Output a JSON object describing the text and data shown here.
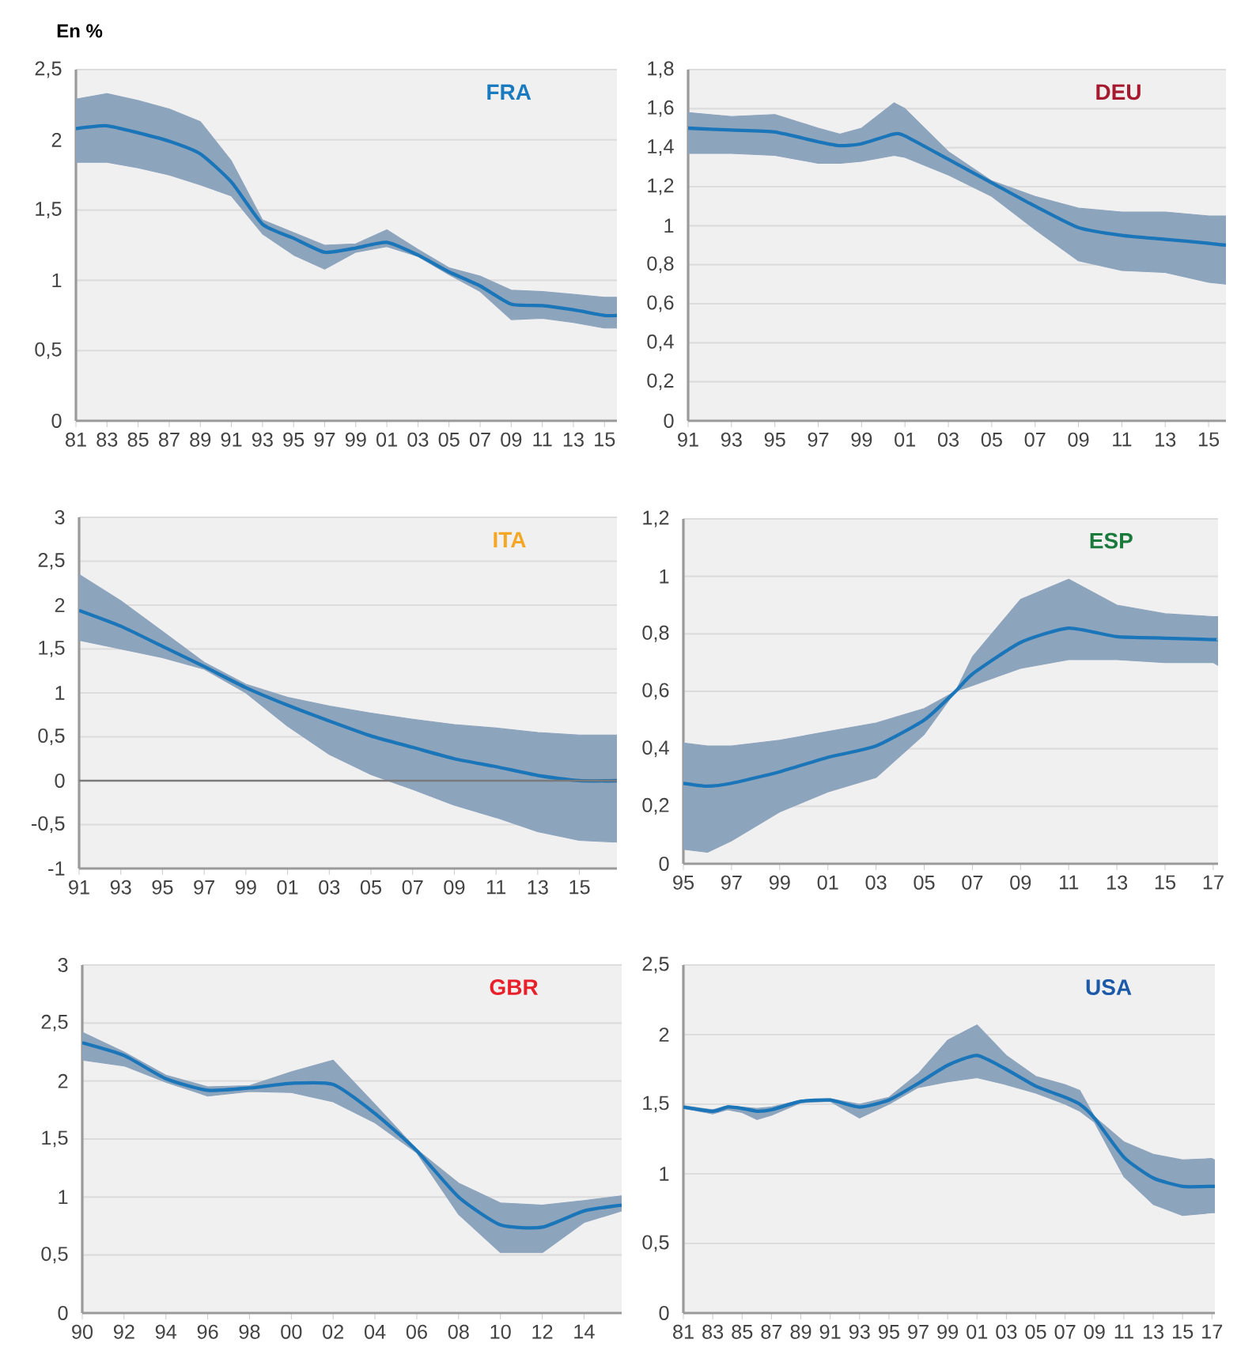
{
  "chart_data": [
    {
      "type": "line",
      "title": "FRA",
      "ylabel": "En %",
      "grid": "y",
      "xlim": [
        1981,
        2015.8
      ],
      "ylim": [
        0,
        2.5
      ],
      "xticks": [
        {
          "value": 1981,
          "label": "81"
        },
        {
          "value": 1983,
          "label": "83"
        },
        {
          "value": 1985,
          "label": "85"
        },
        {
          "value": 1987,
          "label": "87"
        },
        {
          "value": 1989,
          "label": "89"
        },
        {
          "value": 1991,
          "label": "91"
        },
        {
          "value": 1993,
          "label": "93"
        },
        {
          "value": 1995,
          "label": "95"
        },
        {
          "value": 1997,
          "label": "97"
        },
        {
          "value": 1999,
          "label": "99"
        },
        {
          "value": 2001,
          "label": "01"
        },
        {
          "value": 2003,
          "label": "03"
        },
        {
          "value": 2005,
          "label": "05"
        },
        {
          "value": 2007,
          "label": "07"
        },
        {
          "value": 2009,
          "label": "09"
        },
        {
          "value": 2011,
          "label": "11"
        },
        {
          "value": 2013,
          "label": "13"
        },
        {
          "value": 2015,
          "label": "15"
        }
      ],
      "yticks": [
        0,
        {
          "value": 0.5,
          "label": "0,5"
        },
        1,
        {
          "value": 1.5,
          "label": "1,5"
        },
        2,
        {
          "value": 2.5,
          "label": "2,5"
        }
      ],
      "x": [
        1981,
        1983,
        1985,
        1987,
        1989,
        1991,
        1993,
        1995,
        1997,
        1999,
        2001,
        2003,
        2005,
        2007,
        2009,
        2011,
        2013,
        2015,
        2015.8
      ],
      "series": [
        {
          "color": "#1a75b9",
          "values": [
            2.08,
            2.1,
            2.05,
            1.99,
            1.9,
            1.7,
            1.4,
            1.3,
            1.2,
            1.23,
            1.27,
            1.18,
            1.06,
            0.96,
            0.83,
            0.82,
            0.79,
            0.75,
            0.75
          ],
          "upper": [
            2.29,
            2.33,
            2.28,
            2.22,
            2.13,
            1.85,
            1.43,
            1.34,
            1.25,
            1.26,
            1.36,
            1.22,
            1.09,
            1.03,
            0.93,
            0.92,
            0.9,
            0.88,
            0.88
          ],
          "lower": [
            1.84,
            1.84,
            1.8,
            1.75,
            1.68,
            1.6,
            1.33,
            1.18,
            1.08,
            1.2,
            1.24,
            1.17,
            1.04,
            0.92,
            0.72,
            0.73,
            0.7,
            0.66,
            0.66
          ]
        }
      ]
    },
    {
      "type": "line",
      "title": "DEU",
      "grid": "y",
      "xlim": [
        1991,
        2015.8
      ],
      "ylim": [
        0,
        1.8
      ],
      "xticks": [
        {
          "value": 1991,
          "label": "91"
        },
        {
          "value": 1993,
          "label": "93"
        },
        {
          "value": 1995,
          "label": "95"
        },
        {
          "value": 1997,
          "label": "97"
        },
        {
          "value": 1999,
          "label": "99"
        },
        {
          "value": 2001,
          "label": "01"
        },
        {
          "value": 2003,
          "label": "03"
        },
        {
          "value": 2005,
          "label": "05"
        },
        {
          "value": 2007,
          "label": "07"
        },
        {
          "value": 2009,
          "label": "09"
        },
        {
          "value": 2011,
          "label": "11"
        },
        {
          "value": 2013,
          "label": "13"
        },
        {
          "value": 2015,
          "label": "15"
        }
      ],
      "yticks": [
        0,
        {
          "value": 0.2,
          "label": "0,2"
        },
        {
          "value": 0.4,
          "label": "0,4"
        },
        {
          "value": 0.6,
          "label": "0,6"
        },
        {
          "value": 0.8,
          "label": "0,8"
        },
        1,
        {
          "value": 1.2,
          "label": "1,2"
        },
        {
          "value": 1.4,
          "label": "1,4"
        },
        {
          "value": 1.6,
          "label": "1,6"
        },
        {
          "value": 1.8,
          "label": "1,8"
        }
      ],
      "x": [
        1991,
        1993,
        1995,
        1997,
        1998,
        1999,
        2000.5,
        2001,
        2003,
        2005,
        2007,
        2009,
        2011,
        2013,
        2015,
        2015.8
      ],
      "series": [
        {
          "color": "#1a75b9",
          "values": [
            1.5,
            1.49,
            1.48,
            1.43,
            1.41,
            1.42,
            1.47,
            1.46,
            1.34,
            1.22,
            1.1,
            0.99,
            0.95,
            0.93,
            0.91,
            0.9
          ],
          "upper": [
            1.58,
            1.56,
            1.57,
            1.5,
            1.47,
            1.5,
            1.63,
            1.6,
            1.38,
            1.23,
            1.15,
            1.09,
            1.07,
            1.07,
            1.05,
            1.05
          ],
          "lower": [
            1.37,
            1.37,
            1.36,
            1.32,
            1.32,
            1.33,
            1.36,
            1.35,
            1.26,
            1.15,
            0.98,
            0.82,
            0.77,
            0.76,
            0.71,
            0.7
          ]
        }
      ]
    },
    {
      "type": "line",
      "title": "ITA",
      "grid": "y",
      "xlim": [
        1991,
        2016.8
      ],
      "ylim": [
        -1,
        3
      ],
      "xticks": [
        {
          "value": 1991,
          "label": "91"
        },
        {
          "value": 1993,
          "label": "93"
        },
        {
          "value": 1995,
          "label": "95"
        },
        {
          "value": 1997,
          "label": "97"
        },
        {
          "value": 1999,
          "label": "99"
        },
        {
          "value": 2001,
          "label": "01"
        },
        {
          "value": 2003,
          "label": "03"
        },
        {
          "value": 2005,
          "label": "05"
        },
        {
          "value": 2007,
          "label": "07"
        },
        {
          "value": 2009,
          "label": "09"
        },
        {
          "value": 2011,
          "label": "11"
        },
        {
          "value": 2013,
          "label": "13"
        },
        {
          "value": 2015,
          "label": "15"
        }
      ],
      "yticks": [
        -1,
        {
          "value": -0.5,
          "label": "-0,5"
        },
        0,
        {
          "value": 0.5,
          "label": "0,5"
        },
        1,
        {
          "value": 1.5,
          "label": "1,5"
        },
        2,
        {
          "value": 2.5,
          "label": "2,5"
        },
        3
      ],
      "ref_lines": [
        {
          "axis": "y",
          "value": 0,
          "color": "#7a7a7a"
        }
      ],
      "x": [
        1991,
        1993,
        1995,
        1997,
        1999,
        2001,
        2003,
        2005,
        2007,
        2009,
        2011,
        2013,
        2015,
        2016.8
      ],
      "series": [
        {
          "color": "#1a75b9",
          "values": [
            1.94,
            1.76,
            1.53,
            1.3,
            1.06,
            0.86,
            0.68,
            0.51,
            0.38,
            0.25,
            0.16,
            0.06,
            0.0,
            0.0
          ],
          "upper": [
            2.35,
            2.05,
            1.7,
            1.35,
            1.1,
            0.95,
            0.85,
            0.77,
            0.7,
            0.64,
            0.6,
            0.55,
            0.52,
            0.52
          ],
          "lower": [
            1.6,
            1.5,
            1.4,
            1.27,
            1.0,
            0.62,
            0.3,
            0.07,
            -0.1,
            -0.28,
            -0.42,
            -0.58,
            -0.68,
            -0.7
          ]
        }
      ]
    },
    {
      "type": "line",
      "title": "ESP",
      "grid": "y",
      "xlim": [
        1995,
        2017.2
      ],
      "ylim": [
        0,
        1.2
      ],
      "xticks": [
        {
          "value": 1995,
          "label": "95"
        },
        {
          "value": 1997,
          "label": "97"
        },
        {
          "value": 1999,
          "label": "99"
        },
        {
          "value": 2001,
          "label": "01"
        },
        {
          "value": 2003,
          "label": "03"
        },
        {
          "value": 2005,
          "label": "05"
        },
        {
          "value": 2007,
          "label": "07"
        },
        {
          "value": 2009,
          "label": "09"
        },
        {
          "value": 2011,
          "label": "11"
        },
        {
          "value": 2013,
          "label": "13"
        },
        {
          "value": 2015,
          "label": "15"
        },
        {
          "value": 2017,
          "label": "17"
        }
      ],
      "yticks": [
        0,
        {
          "value": 0.2,
          "label": "0,2"
        },
        {
          "value": 0.4,
          "label": "0,4"
        },
        {
          "value": 0.6,
          "label": "0,6"
        },
        {
          "value": 0.8,
          "label": "0,8"
        },
        1,
        {
          "value": 1.2,
          "label": "1,2"
        }
      ],
      "x": [
        1995,
        1996,
        1997,
        1999,
        2001,
        2003,
        2005,
        2006.3,
        2007,
        2009,
        2011,
        2013,
        2015,
        2017,
        2017.2
      ],
      "series": [
        {
          "color": "#1a75b9",
          "values": [
            0.28,
            0.27,
            0.28,
            0.32,
            0.37,
            0.41,
            0.5,
            0.6,
            0.66,
            0.77,
            0.82,
            0.79,
            0.785,
            0.78,
            0.78
          ],
          "upper": [
            0.42,
            0.41,
            0.41,
            0.43,
            0.46,
            0.49,
            0.54,
            0.6,
            0.72,
            0.92,
            0.99,
            0.9,
            0.87,
            0.86,
            0.86
          ],
          "lower": [
            0.05,
            0.04,
            0.08,
            0.18,
            0.25,
            0.3,
            0.45,
            0.6,
            0.62,
            0.68,
            0.71,
            0.71,
            0.7,
            0.7,
            0.69
          ]
        }
      ]
    },
    {
      "type": "line",
      "title": "GBR",
      "grid": "y",
      "xlim": [
        1990,
        2015.8
      ],
      "ylim": [
        0,
        3
      ],
      "xticks": [
        {
          "value": 1990,
          "label": "90"
        },
        {
          "value": 1992,
          "label": "92"
        },
        {
          "value": 1994,
          "label": "94"
        },
        {
          "value": 1996,
          "label": "96"
        },
        {
          "value": 1998,
          "label": "98"
        },
        {
          "value": 2000,
          "label": "00"
        },
        {
          "value": 2002,
          "label": "02"
        },
        {
          "value": 2004,
          "label": "04"
        },
        {
          "value": 2006,
          "label": "06"
        },
        {
          "value": 2008,
          "label": "08"
        },
        {
          "value": 2010,
          "label": "10"
        },
        {
          "value": 2012,
          "label": "12"
        },
        {
          "value": 2014,
          "label": "14"
        }
      ],
      "yticks": [
        0,
        {
          "value": 0.5,
          "label": "0,5"
        },
        1,
        {
          "value": 1.5,
          "label": "1,5"
        },
        2,
        {
          "value": 2.5,
          "label": "2,5"
        },
        3
      ],
      "x": [
        1990,
        1992,
        1994,
        1996,
        1998,
        2000,
        2002,
        2004,
        2006,
        2008,
        2010,
        2012,
        2014,
        2015.8
      ],
      "series": [
        {
          "color": "#1a75b9",
          "values": [
            2.33,
            2.22,
            2.02,
            1.92,
            1.94,
            1.98,
            1.97,
            1.72,
            1.4,
            1.0,
            0.76,
            0.74,
            0.88,
            0.93
          ],
          "upper": [
            2.42,
            2.25,
            2.05,
            1.95,
            1.96,
            2.08,
            2.18,
            1.8,
            1.41,
            1.12,
            0.95,
            0.93,
            0.97,
            1.01
          ],
          "lower": [
            2.18,
            2.13,
            1.99,
            1.87,
            1.91,
            1.9,
            1.82,
            1.64,
            1.38,
            0.85,
            0.52,
            0.52,
            0.78,
            0.88
          ]
        }
      ]
    },
    {
      "type": "line",
      "title": "USA",
      "grid": "y",
      "xlim": [
        1981,
        2017.2
      ],
      "ylim": [
        0,
        2.5
      ],
      "xticks": [
        {
          "value": 1981,
          "label": "81"
        },
        {
          "value": 1983,
          "label": "83"
        },
        {
          "value": 1985,
          "label": "85"
        },
        {
          "value": 1987,
          "label": "87"
        },
        {
          "value": 1989,
          "label": "89"
        },
        {
          "value": 1991,
          "label": "91"
        },
        {
          "value": 1993,
          "label": "93"
        },
        {
          "value": 1995,
          "label": "95"
        },
        {
          "value": 1997,
          "label": "97"
        },
        {
          "value": 1999,
          "label": "99"
        },
        {
          "value": 2001,
          "label": "01"
        },
        {
          "value": 2003,
          "label": "03"
        },
        {
          "value": 2005,
          "label": "05"
        },
        {
          "value": 2007,
          "label": "07"
        },
        {
          "value": 2009,
          "label": "09"
        },
        {
          "value": 2011,
          "label": "11"
        },
        {
          "value": 2013,
          "label": "13"
        },
        {
          "value": 2015,
          "label": "15"
        },
        {
          "value": 2017,
          "label": "17"
        }
      ],
      "yticks": [
        0,
        {
          "value": 0.5,
          "label": "0,5"
        },
        1,
        {
          "value": 1.5,
          "label": "1,5"
        },
        2,
        {
          "value": 2.5,
          "label": "2,5"
        }
      ],
      "x": [
        1981,
        1983,
        1984,
        1985,
        1986,
        1987,
        1989,
        1991,
        1993,
        1995,
        1997,
        1999,
        2001,
        2003,
        2005,
        2007,
        2008,
        2009,
        2011,
        2013,
        2015,
        2017,
        2017.2
      ],
      "series": [
        {
          "color": "#1a75b9",
          "values": [
            1.48,
            1.45,
            1.48,
            1.47,
            1.45,
            1.46,
            1.52,
            1.53,
            1.48,
            1.53,
            1.65,
            1.78,
            1.85,
            1.75,
            1.63,
            1.55,
            1.5,
            1.4,
            1.12,
            0.97,
            0.91,
            0.91,
            0.91
          ],
          "upper": [
            1.49,
            1.46,
            1.49,
            1.48,
            1.47,
            1.48,
            1.53,
            1.54,
            1.5,
            1.55,
            1.72,
            1.96,
            2.07,
            1.85,
            1.7,
            1.64,
            1.6,
            1.41,
            1.23,
            1.14,
            1.1,
            1.11,
            1.1
          ],
          "lower": [
            1.47,
            1.43,
            1.46,
            1.44,
            1.39,
            1.42,
            1.51,
            1.52,
            1.4,
            1.5,
            1.62,
            1.66,
            1.69,
            1.64,
            1.58,
            1.5,
            1.45,
            1.37,
            0.98,
            0.78,
            0.7,
            0.72,
            0.72
          ]
        }
      ]
    }
  ]
}
